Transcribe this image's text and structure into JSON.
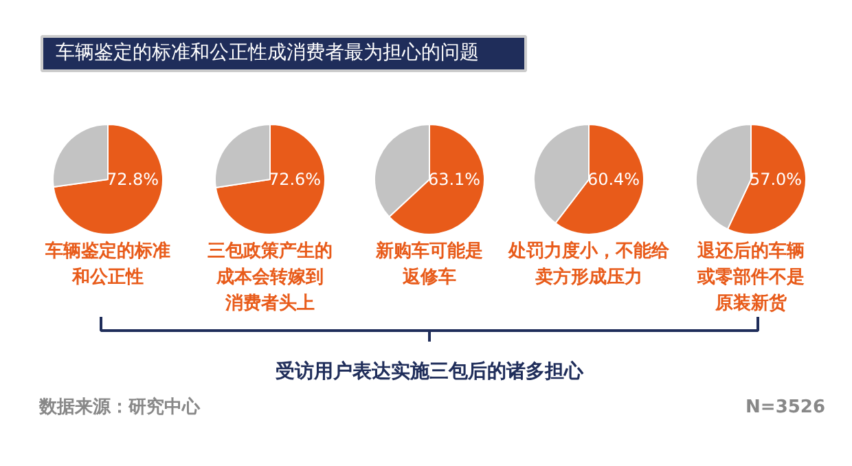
{
  "chart_data": [
    {
      "type": "pie",
      "title": "车辆鉴定的标准和公正性成消费者最为担心的问题",
      "categories": [
        "车辆鉴定的标准和公正性",
        null
      ],
      "values": [
        72.8,
        27.2
      ],
      "colors": [
        "#e85b1a",
        "#c3c3c3"
      ],
      "value_labels": [
        "72.8%",
        null
      ],
      "annotations": [
        "受访用户表达实施三包后的诸多担心",
        "数据来源：研究中心",
        "N=3526"
      ]
    },
    {
      "type": "pie",
      "categories": [
        "三包政策产生的成本会转嫁到消费者头上",
        null
      ],
      "values": [
        72.6,
        27.4
      ],
      "colors": [
        "#e85b1a",
        "#c3c3c3"
      ],
      "value_labels": [
        "72.6%",
        null
      ]
    },
    {
      "type": "pie",
      "categories": [
        "新购车可能是返修车",
        null
      ],
      "values": [
        63.1,
        36.9
      ],
      "colors": [
        "#e85b1a",
        "#c3c3c3"
      ],
      "value_labels": [
        "63.1%",
        null
      ]
    },
    {
      "type": "pie",
      "categories": [
        "处罚力度小，不能给卖方形成压力",
        null
      ],
      "values": [
        60.4,
        39.6
      ],
      "colors": [
        "#e85b1a",
        "#c3c3c3"
      ],
      "value_labels": [
        "60.4%",
        null
      ]
    },
    {
      "type": "pie",
      "categories": [
        "退还后的车辆或零部件不是原装新货",
        null
      ],
      "values": [
        57.0,
        43.0
      ],
      "colors": [
        "#e85b1a",
        "#c3c3c3"
      ],
      "value_labels": [
        "57.0%",
        null
      ]
    }
  ]
}
